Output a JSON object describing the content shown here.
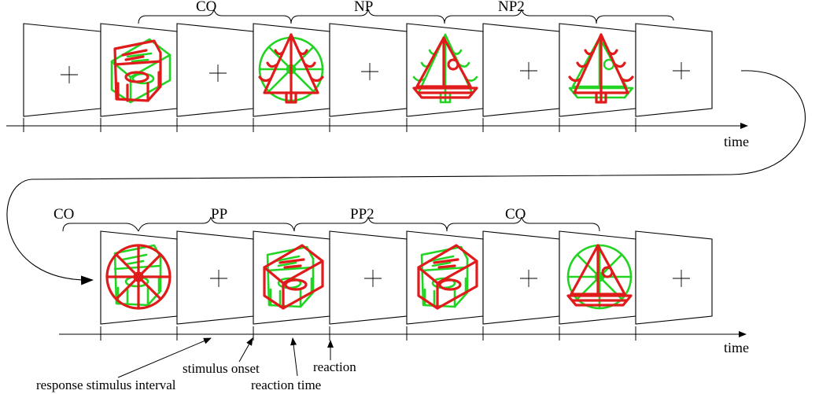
{
  "row1": {
    "frames": [
      "fixation",
      "chair-red-book-green",
      "fixation",
      "tree-red-ball-green",
      "fixation",
      "boat-red-tree-green",
      "fixation",
      "tree-red-boat-green",
      "fixation"
    ],
    "labels": [
      "CO",
      "NP",
      "NP2"
    ],
    "axis_label": "time"
  },
  "row2": {
    "frames": [
      "ball-red-chair-green",
      "fixation",
      "book-red-chair-green",
      "fixation",
      "book-red-chair-green",
      "fixation",
      "boat-red-ball-green",
      "fixation"
    ],
    "labels": [
      "CO",
      "PP",
      "PP2",
      "CO"
    ],
    "axis_label": "time"
  },
  "annotations": {
    "stimulus_onset": "stimulus onset",
    "reaction": "reaction",
    "rsi": "response stimulus interval",
    "reaction_time": "reaction time"
  },
  "colors": {
    "red": "#e01b1b",
    "green": "#22d422"
  }
}
